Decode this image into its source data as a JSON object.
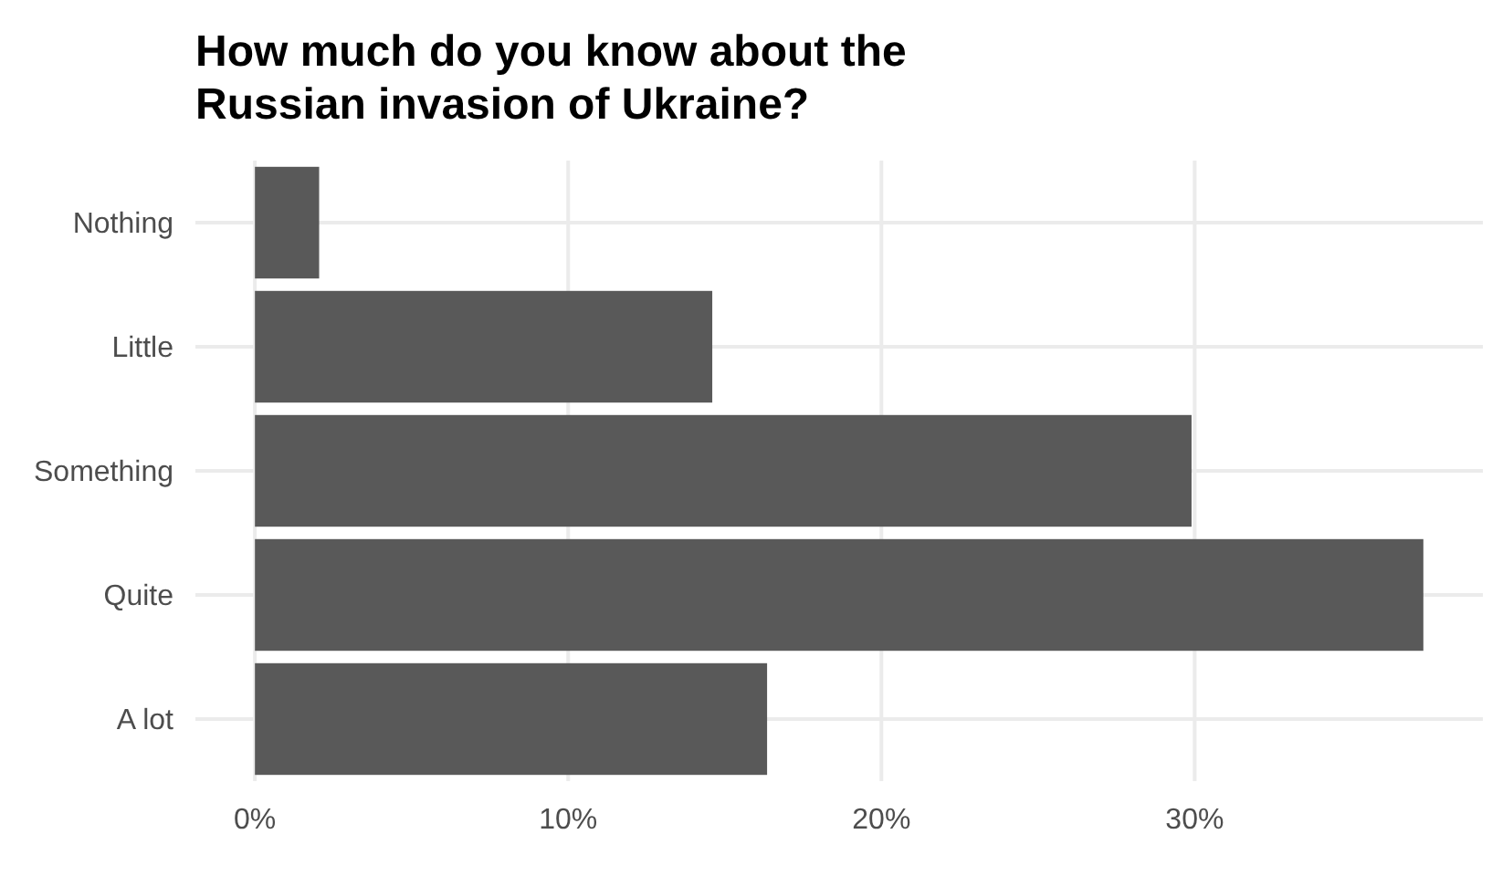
{
  "chart_data": {
    "type": "bar",
    "orientation": "horizontal",
    "title": "How much do you know about the\nRussian invasion of Ukraine?",
    "categories": [
      "Nothing",
      "Little",
      "Something",
      "Quite",
      "A lot"
    ],
    "values": [
      2.05,
      14.6,
      29.9,
      37.3,
      16.35
    ],
    "color": "#595959",
    "xlim": [
      -1.9,
      39.2
    ],
    "xticks": [
      {
        "value": 0,
        "label": "0%"
      },
      {
        "value": 10,
        "label": "10%"
      },
      {
        "value": 20,
        "label": "20%"
      },
      {
        "value": 30,
        "label": "30%"
      }
    ],
    "grid": true
  }
}
